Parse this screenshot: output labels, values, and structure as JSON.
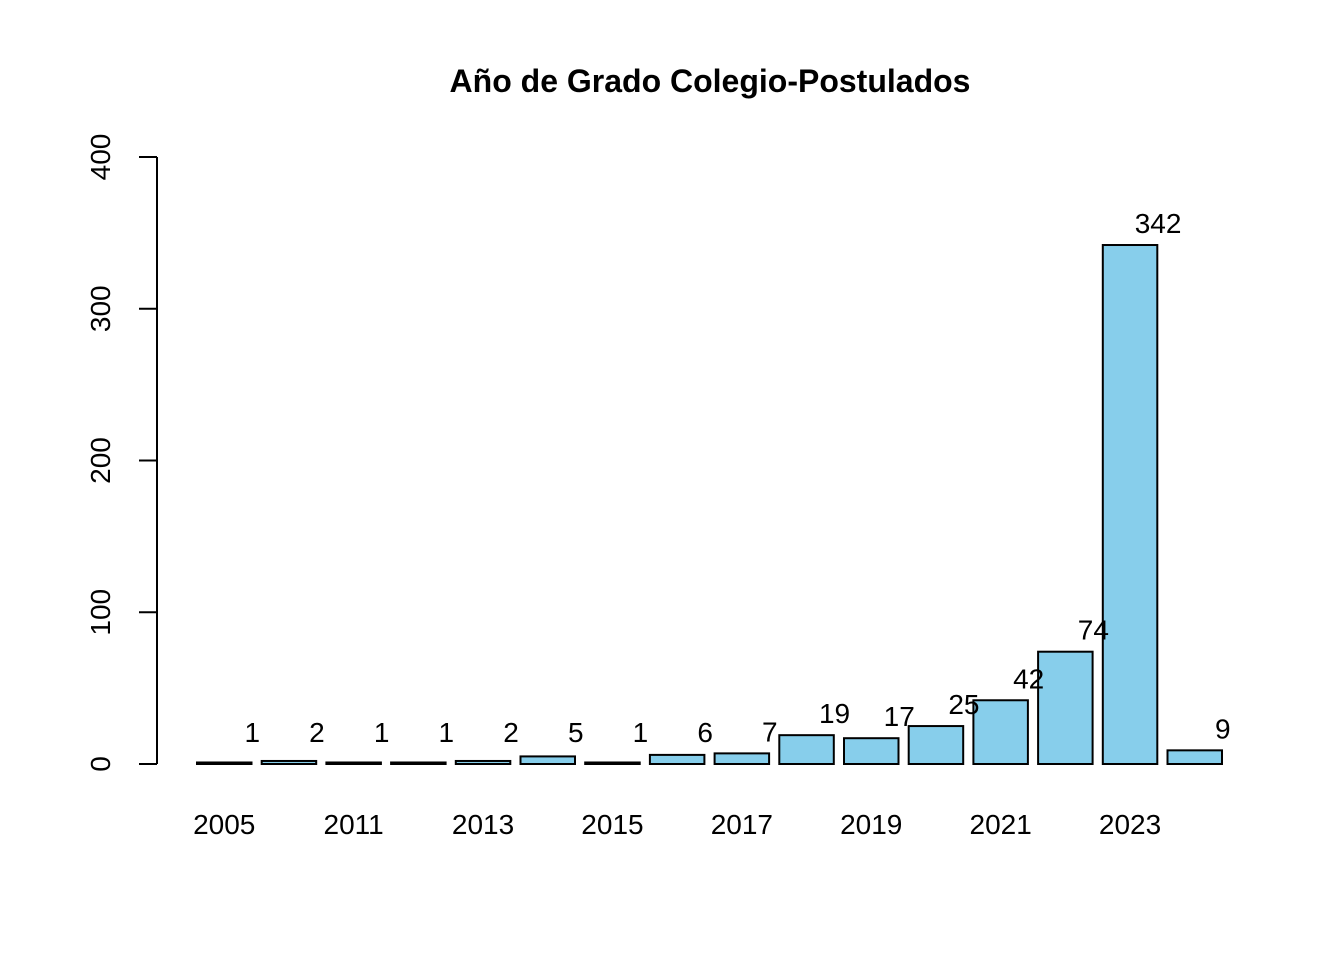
{
  "chart_data": {
    "type": "bar",
    "title": "Año de Grado Colegio-Postulados",
    "xlabel": "",
    "ylabel": "",
    "ylim": [
      0,
      400
    ],
    "yticks": [
      0,
      100,
      200,
      300,
      400
    ],
    "bar_count": 16,
    "x_tick_labels": [
      {
        "bar": 0,
        "label": "2005"
      },
      {
        "bar": 2,
        "label": "2011"
      },
      {
        "bar": 4,
        "label": "2013"
      },
      {
        "bar": 6,
        "label": "2015"
      },
      {
        "bar": 8,
        "label": "2017"
      },
      {
        "bar": 10,
        "label": "2019"
      },
      {
        "bar": 12,
        "label": "2021"
      },
      {
        "bar": 14,
        "label": "2023"
      }
    ],
    "values": [
      1,
      2,
      1,
      1,
      2,
      5,
      1,
      6,
      7,
      19,
      17,
      25,
      42,
      74,
      342,
      9
    ],
    "data_labels": [
      "1",
      "2",
      "1",
      "1",
      "2",
      "5",
      "1",
      "6",
      "7",
      "19",
      "17",
      "25",
      "42",
      "74",
      "342",
      "9"
    ],
    "bar_color": "#87CEEB",
    "grid": false,
    "legend": "none"
  }
}
